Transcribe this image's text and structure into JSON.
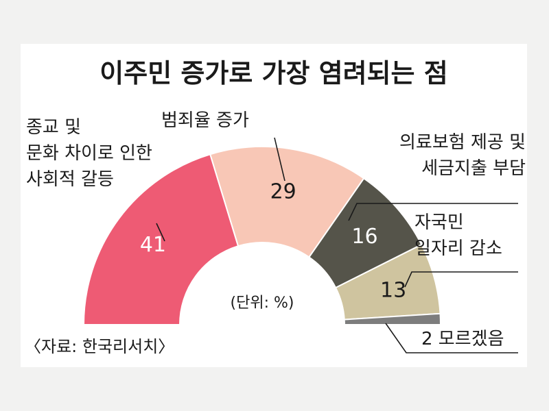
{
  "chart_data": {
    "type": "pie",
    "title": "이주민 증가로 가장 염려되는 점",
    "unit_note": "(단위: %)",
    "source": "〈자료: 한국리서치〉",
    "slices": [
      {
        "label_lines": [
          "종교 및",
          "문화 차이로 인한",
          "사회적 갈등"
        ],
        "value": 41,
        "color": "#ee5b74",
        "text_color": "#ffffff"
      },
      {
        "label_lines": [
          "범죄율 증가"
        ],
        "value": 29,
        "color": "#f8c7b6",
        "text_color": "#1a1a1a"
      },
      {
        "label_lines": [
          "의료보험 제공 및",
          "세금지출 부담"
        ],
        "value": 16,
        "color": "#55544a",
        "text_color": "#ffffff"
      },
      {
        "label_lines": [
          "자국민",
          "일자리 감소"
        ],
        "value": 13,
        "color": "#cfc49f",
        "text_color": "#1a1a1a"
      },
      {
        "label_lines": [
          "모르겠음"
        ],
        "value": 2,
        "color": "#7d7d7d",
        "text_color": "#1a1a1a"
      }
    ]
  }
}
